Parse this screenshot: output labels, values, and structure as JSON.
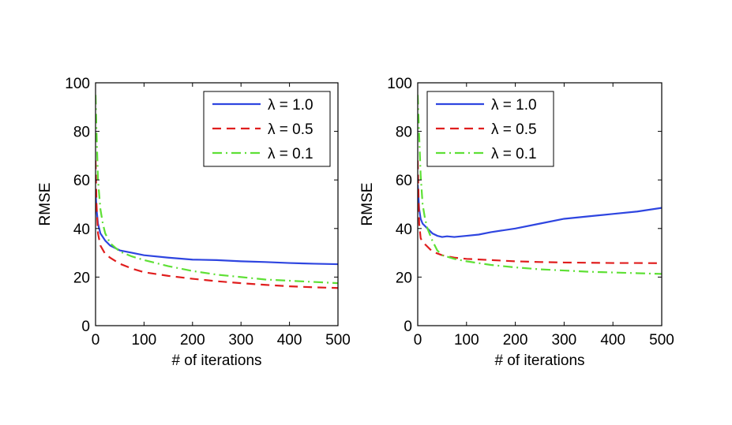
{
  "chart_data": [
    {
      "type": "line",
      "title": "",
      "xlabel": "# of iterations",
      "ylabel": "RMSE",
      "xlim": [
        0,
        500
      ],
      "ylim": [
        0,
        100
      ],
      "xticks": [
        "0",
        "100",
        "200",
        "300",
        "400",
        "500"
      ],
      "yticks": [
        "0",
        "20",
        "40",
        "60",
        "80",
        "100"
      ],
      "grid": false,
      "legend_position": "top-right",
      "series": [
        {
          "name": "λ = 1.0",
          "color": "#2e45e0",
          "style": "solid",
          "x": [
            0,
            2,
            5,
            10,
            20,
            30,
            50,
            75,
            100,
            150,
            200,
            250,
            300,
            350,
            400,
            450,
            500
          ],
          "y": [
            55,
            48,
            42,
            38,
            35,
            33,
            31,
            30,
            29,
            28,
            27.2,
            27,
            26.5,
            26.2,
            25.8,
            25.5,
            25.3
          ]
        },
        {
          "name": "λ = 0.5",
          "color": "#e01e1e",
          "style": "dashed",
          "x": [
            0,
            2,
            5,
            10,
            20,
            30,
            50,
            75,
            100,
            150,
            200,
            250,
            300,
            350,
            400,
            450,
            500
          ],
          "y": [
            68,
            50,
            38,
            33,
            29.5,
            28,
            25.5,
            23.5,
            22,
            20.5,
            19.3,
            18.3,
            17.5,
            16.8,
            16.2,
            15.8,
            15.5
          ]
        },
        {
          "name": "λ = 0.1",
          "color": "#5ee035",
          "style": "dashdot",
          "x": [
            0,
            2,
            5,
            10,
            15,
            20,
            30,
            50,
            75,
            100,
            150,
            200,
            250,
            300,
            350,
            400,
            450,
            500
          ],
          "y": [
            95,
            80,
            60,
            48,
            42,
            38,
            34,
            30.5,
            28.5,
            27,
            24.5,
            22.5,
            21,
            20,
            19,
            18.5,
            18,
            17.5
          ]
        }
      ]
    },
    {
      "type": "line",
      "title": "",
      "xlabel": "# of iterations",
      "ylabel": "RMSE",
      "xlim": [
        0,
        500
      ],
      "ylim": [
        0,
        100
      ],
      "xticks": [
        "0",
        "100",
        "200",
        "300",
        "400",
        "500"
      ],
      "yticks": [
        "0",
        "20",
        "40",
        "60",
        "80",
        "100"
      ],
      "grid": false,
      "legend_position": "top-right",
      "series": [
        {
          "name": "λ = 1.0",
          "color": "#2e45e0",
          "style": "solid",
          "x": [
            0,
            3,
            6,
            10,
            15,
            20,
            30,
            40,
            50,
            60,
            75,
            100,
            125,
            150,
            200,
            250,
            300,
            350,
            400,
            450,
            500
          ],
          "y": [
            58,
            48,
            44,
            42,
            41,
            40,
            38,
            37,
            36.5,
            36.8,
            36.5,
            37,
            37.5,
            38.5,
            40,
            42,
            44,
            45,
            46,
            47,
            48.5
          ]
        },
        {
          "name": "λ = 0.5",
          "color": "#e01e1e",
          "style": "dashed",
          "x": [
            0,
            3,
            6,
            10,
            20,
            30,
            50,
            75,
            100,
            150,
            200,
            250,
            300,
            350,
            400,
            450,
            500
          ],
          "y": [
            68,
            42,
            36,
            34.5,
            32.5,
            30.5,
            29,
            28,
            27.5,
            27,
            26.5,
            26.2,
            26,
            25.9,
            25.8,
            25.8,
            25.7
          ]
        },
        {
          "name": "λ = 0.1",
          "color": "#5ee035",
          "style": "dashdot",
          "x": [
            0,
            3,
            6,
            10,
            15,
            20,
            30,
            40,
            50,
            75,
            100,
            150,
            200,
            250,
            300,
            350,
            400,
            450,
            500
          ],
          "y": [
            95,
            78,
            62,
            50,
            44,
            40,
            35,
            31,
            29,
            27.5,
            26.5,
            25,
            24,
            23.2,
            22.7,
            22.2,
            21.9,
            21.6,
            21.3
          ]
        }
      ]
    }
  ]
}
